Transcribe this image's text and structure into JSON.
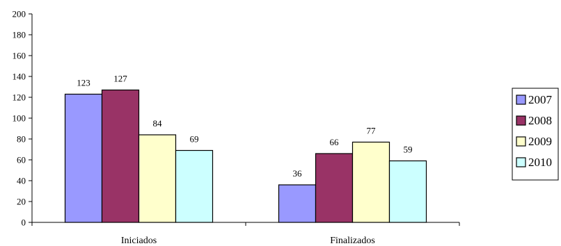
{
  "chart_data": {
    "type": "bar",
    "categories": [
      "Iniciados",
      "Finalizados"
    ],
    "series": [
      {
        "name": "2007",
        "values": [
          123,
          36
        ],
        "color": "#9999ff"
      },
      {
        "name": "2008",
        "values": [
          127,
          66
        ],
        "color": "#993366"
      },
      {
        "name": "2009",
        "values": [
          84,
          77
        ],
        "color": "#ffffcc"
      },
      {
        "name": "2010",
        "values": [
          69,
          59
        ],
        "color": "#ccffff"
      }
    ],
    "data_labels": [
      [
        "123",
        "36"
      ],
      [
        "127",
        "66"
      ],
      [
        "84",
        "77"
      ],
      [
        "69",
        "59"
      ]
    ],
    "y_ticks": [
      "0",
      "20",
      "40",
      "60",
      "80",
      "100",
      "120",
      "140",
      "160",
      "180",
      "200"
    ],
    "ylim": [
      0,
      200
    ],
    "legend_position": "right",
    "grid": false,
    "title": "",
    "xlabel": "",
    "ylabel": ""
  }
}
